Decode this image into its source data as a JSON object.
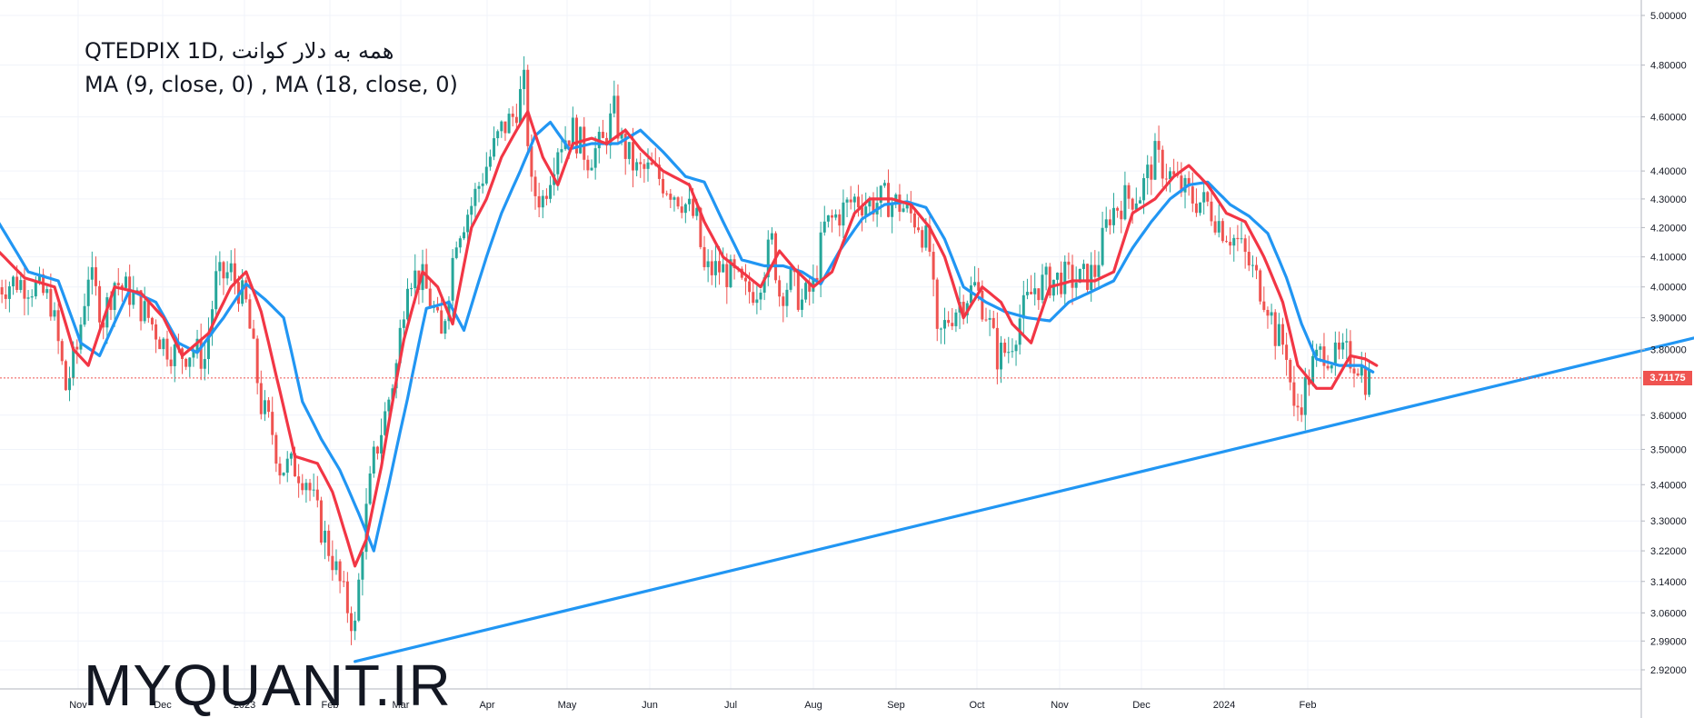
{
  "header": {
    "title_line1": "QTEDPIX 1D, همه به دلار کوانت",
    "title_line2": "MA (9, close, 0) , MA (18, close, 0)"
  },
  "watermark": "MYQUANT.IR",
  "last_price_label": "3.71175",
  "colors": {
    "up": "#26a69a",
    "down": "#ef5350",
    "ma9": "#f23645",
    "ma18": "#2196f3",
    "trendline": "#2196f3",
    "price_line": "#ef5350",
    "grid": "#f0f3fa",
    "axis_text": "#131722"
  },
  "chart_data": {
    "type": "candlestick",
    "y_scale": "log",
    "ylim": [
      2.87,
      5.03
    ],
    "y_ticks": [
      "5.00000",
      "4.80000",
      "4.60000",
      "4.40000",
      "4.30000",
      "4.20000",
      "4.10000",
      "4.00000",
      "3.90000",
      "3.80000",
      "3.71175",
      "3.60000",
      "3.50000",
      "3.40000",
      "3.30000",
      "3.22000",
      "3.14000",
      "3.06000",
      "2.99000",
      "2.92000"
    ],
    "x_ticks": [
      "Nov",
      "Dec",
      "2023",
      "Feb",
      "Mar",
      "Apr",
      "May",
      "Jun",
      "Jul",
      "Aug",
      "Sep",
      "Oct",
      "Nov",
      "Dec",
      "2024",
      "Feb"
    ],
    "last_price": 3.71175,
    "ma9_anchors": [
      [
        0,
        4.12
      ],
      [
        7,
        4.03
      ],
      [
        15,
        4.0
      ],
      [
        20,
        3.8
      ],
      [
        24,
        3.75
      ],
      [
        31,
        4.0
      ],
      [
        38,
        3.98
      ],
      [
        44,
        3.9
      ],
      [
        49,
        3.78
      ],
      [
        56,
        3.85
      ],
      [
        62,
        4.0
      ],
      [
        66,
        4.05
      ],
      [
        70,
        3.92
      ],
      [
        74,
        3.72
      ],
      [
        79,
        3.48
      ],
      [
        85,
        3.46
      ],
      [
        89,
        3.38
      ],
      [
        95,
        3.18
      ],
      [
        98,
        3.25
      ],
      [
        102,
        3.45
      ],
      [
        108,
        3.83
      ],
      [
        113,
        4.05
      ],
      [
        117,
        4.0
      ],
      [
        121,
        3.88
      ],
      [
        126,
        4.2
      ],
      [
        130,
        4.3
      ],
      [
        134,
        4.45
      ],
      [
        138,
        4.55
      ],
      [
        141,
        4.62
      ],
      [
        145,
        4.45
      ],
      [
        149,
        4.35
      ],
      [
        153,
        4.5
      ],
      [
        158,
        4.52
      ],
      [
        162,
        4.5
      ],
      [
        167,
        4.55
      ],
      [
        171,
        4.48
      ],
      [
        177,
        4.4
      ],
      [
        184,
        4.35
      ],
      [
        188,
        4.22
      ],
      [
        193,
        4.1
      ],
      [
        198,
        4.05
      ],
      [
        203,
        4.0
      ],
      [
        208,
        4.12
      ],
      [
        212,
        4.06
      ],
      [
        217,
        4.0
      ],
      [
        222,
        4.05
      ],
      [
        228,
        4.25
      ],
      [
        232,
        4.3
      ],
      [
        238,
        4.3
      ],
      [
        243,
        4.28
      ],
      [
        248,
        4.2
      ],
      [
        252,
        4.1
      ],
      [
        257,
        3.9
      ],
      [
        262,
        4.0
      ],
      [
        267,
        3.95
      ],
      [
        270,
        3.88
      ],
      [
        275,
        3.82
      ],
      [
        280,
        4.0
      ],
      [
        286,
        4.02
      ],
      [
        292,
        4.02
      ],
      [
        297,
        4.05
      ],
      [
        302,
        4.25
      ],
      [
        308,
        4.3
      ],
      [
        313,
        4.38
      ],
      [
        317,
        4.42
      ],
      [
        322,
        4.35
      ],
      [
        327,
        4.25
      ],
      [
        332,
        4.22
      ],
      [
        337,
        4.1
      ],
      [
        342,
        3.95
      ],
      [
        346,
        3.75
      ],
      [
        351,
        3.68
      ],
      [
        355,
        3.68
      ],
      [
        360,
        3.78
      ],
      [
        364,
        3.77
      ],
      [
        367,
        3.75
      ]
    ],
    "ma18_anchors": [
      [
        0,
        4.22
      ],
      [
        8,
        4.05
      ],
      [
        16,
        4.02
      ],
      [
        22,
        3.82
      ],
      [
        27,
        3.78
      ],
      [
        35,
        3.99
      ],
      [
        42,
        3.95
      ],
      [
        48,
        3.82
      ],
      [
        53,
        3.79
      ],
      [
        60,
        3.9
      ],
      [
        66,
        4.01
      ],
      [
        71,
        3.96
      ],
      [
        76,
        3.9
      ],
      [
        81,
        3.64
      ],
      [
        86,
        3.53
      ],
      [
        91,
        3.44
      ],
      [
        96,
        3.32
      ],
      [
        100,
        3.22
      ],
      [
        104,
        3.4
      ],
      [
        109,
        3.65
      ],
      [
        114,
        3.93
      ],
      [
        120,
        3.95
      ],
      [
        124,
        3.86
      ],
      [
        130,
        4.1
      ],
      [
        134,
        4.25
      ],
      [
        139,
        4.4
      ],
      [
        143,
        4.53
      ],
      [
        147,
        4.58
      ],
      [
        152,
        4.48
      ],
      [
        158,
        4.5
      ],
      [
        165,
        4.5
      ],
      [
        171,
        4.55
      ],
      [
        177,
        4.47
      ],
      [
        183,
        4.38
      ],
      [
        188,
        4.36
      ],
      [
        193,
        4.22
      ],
      [
        198,
        4.09
      ],
      [
        204,
        4.07
      ],
      [
        209,
        4.07
      ],
      [
        214,
        4.05
      ],
      [
        219,
        4.01
      ],
      [
        224,
        4.12
      ],
      [
        230,
        4.23
      ],
      [
        236,
        4.28
      ],
      [
        242,
        4.29
      ],
      [
        247,
        4.27
      ],
      [
        252,
        4.16
      ],
      [
        257,
        4.0
      ],
      [
        263,
        3.95
      ],
      [
        268,
        3.92
      ],
      [
        274,
        3.9
      ],
      [
        280,
        3.89
      ],
      [
        285,
        3.95
      ],
      [
        292,
        3.99
      ],
      [
        297,
        4.02
      ],
      [
        302,
        4.13
      ],
      [
        307,
        4.22
      ],
      [
        312,
        4.3
      ],
      [
        317,
        4.35
      ],
      [
        322,
        4.36
      ],
      [
        328,
        4.28
      ],
      [
        333,
        4.24
      ],
      [
        338,
        4.18
      ],
      [
        343,
        4.03
      ],
      [
        347,
        3.88
      ],
      [
        351,
        3.77
      ],
      [
        357,
        3.75
      ],
      [
        363,
        3.75
      ],
      [
        366,
        3.73
      ]
    ],
    "close_anchors": [
      [
        0,
        4.0
      ],
      [
        5,
        4.02
      ],
      [
        10,
        4.0
      ],
      [
        14,
        3.95
      ],
      [
        18,
        3.68
      ],
      [
        21,
        3.8
      ],
      [
        24,
        4.05
      ],
      [
        28,
        3.9
      ],
      [
        31,
        4.02
      ],
      [
        36,
        3.97
      ],
      [
        40,
        3.9
      ],
      [
        44,
        3.82
      ],
      [
        48,
        3.78
      ],
      [
        52,
        3.8
      ],
      [
        55,
        3.77
      ],
      [
        58,
        4.02
      ],
      [
        62,
        4.05
      ],
      [
        66,
        3.94
      ],
      [
        70,
        3.63
      ],
      [
        73,
        3.55
      ],
      [
        75,
        3.45
      ],
      [
        79,
        3.45
      ],
      [
        82,
        3.42
      ],
      [
        86,
        3.28
      ],
      [
        89,
        3.2
      ],
      [
        92,
        3.1
      ],
      [
        95,
        3.02
      ],
      [
        97,
        3.25
      ],
      [
        100,
        3.47
      ],
      [
        103,
        3.6
      ],
      [
        106,
        3.75
      ],
      [
        109,
        4.05
      ],
      [
        113,
        4.02
      ],
      [
        116,
        3.92
      ],
      [
        118,
        3.83
      ],
      [
        122,
        4.18
      ],
      [
        126,
        4.28
      ],
      [
        130,
        4.42
      ],
      [
        134,
        4.55
      ],
      [
        137,
        4.6
      ],
      [
        140,
        4.72
      ],
      [
        142,
        4.33
      ],
      [
        145,
        4.3
      ],
      [
        149,
        4.5
      ],
      [
        153,
        4.55
      ],
      [
        157,
        4.45
      ],
      [
        161,
        4.5
      ],
      [
        164,
        4.62
      ],
      [
        166,
        4.5
      ],
      [
        170,
        4.4
      ],
      [
        174,
        4.4
      ],
      [
        178,
        4.35
      ],
      [
        182,
        4.3
      ],
      [
        186,
        4.22
      ],
      [
        188,
        4.05
      ],
      [
        192,
        4.06
      ],
      [
        196,
        4.03
      ],
      [
        199,
        3.98
      ],
      [
        202,
        4.0
      ],
      [
        206,
        4.15
      ],
      [
        208,
        3.98
      ],
      [
        211,
        4.02
      ],
      [
        214,
        3.95
      ],
      [
        217,
        4.0
      ],
      [
        220,
        4.2
      ],
      [
        224,
        4.25
      ],
      [
        228,
        4.3
      ],
      [
        232,
        4.28
      ],
      [
        236,
        4.3
      ],
      [
        240,
        4.28
      ],
      [
        245,
        4.22
      ],
      [
        248,
        4.12
      ],
      [
        250,
        3.82
      ],
      [
        253,
        3.9
      ],
      [
        256,
        3.95
      ],
      [
        260,
        4.0
      ],
      [
        263,
        3.92
      ],
      [
        266,
        3.78
      ],
      [
        269,
        3.8
      ],
      [
        272,
        3.9
      ],
      [
        276,
        4.0
      ],
      [
        280,
        4.02
      ],
      [
        284,
        4.03
      ],
      [
        288,
        4.02
      ],
      [
        292,
        4.05
      ],
      [
        296,
        4.25
      ],
      [
        300,
        4.3
      ],
      [
        304,
        4.32
      ],
      [
        308,
        4.45
      ],
      [
        311,
        4.4
      ],
      [
        314,
        4.35
      ],
      [
        318,
        4.3
      ],
      [
        322,
        4.28
      ],
      [
        326,
        4.2
      ],
      [
        330,
        4.15
      ],
      [
        334,
        4.05
      ],
      [
        338,
        3.95
      ],
      [
        340,
        3.85
      ],
      [
        343,
        3.8
      ],
      [
        345,
        3.6
      ],
      [
        347,
        3.65
      ],
      [
        350,
        3.75
      ],
      [
        353,
        3.8
      ],
      [
        356,
        3.77
      ],
      [
        359,
        3.78
      ],
      [
        362,
        3.76
      ],
      [
        364,
        3.71
      ]
    ],
    "candle_count": 365,
    "trendline": [
      {
        "date_index": 95,
        "price": 2.94
      },
      {
        "date_index": 460,
        "price": 3.86
      }
    ]
  }
}
